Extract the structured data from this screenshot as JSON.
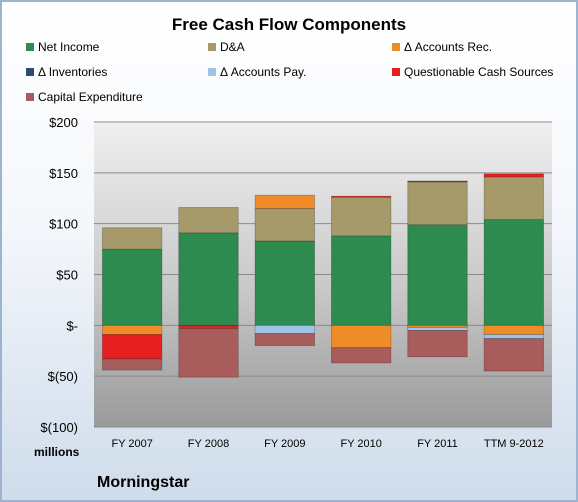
{
  "chart_data": {
    "type": "bar",
    "stacked": true,
    "title": "Free Cash Flow Components",
    "unit_label": "millions",
    "source": "Morningstar",
    "categories": [
      "FY 2007",
      "FY 2008",
      "FY 2009",
      "FY 2010",
      "FY 2011",
      "TTM 9-2012"
    ],
    "ylim": [
      -100,
      200
    ],
    "yticks": [
      200,
      150,
      100,
      50,
      0,
      -50,
      -100
    ],
    "ytick_labels": [
      "$200",
      "$150",
      "$100",
      "$50",
      "$-",
      "$(50)",
      "$(100)"
    ],
    "grid": true,
    "legend_position": "top",
    "series": [
      {
        "name": "Net Income",
        "color": "#2e8b4f",
        "values": [
          75,
          91,
          83,
          88,
          99,
          104
        ]
      },
      {
        "name": "D&A",
        "color": "#a69a6a",
        "values": [
          21,
          25,
          32,
          38,
          42,
          42
        ]
      },
      {
        "name": "Δ Accounts Rec.",
        "color": "#f08c28",
        "values": [
          -9,
          0,
          13,
          -22,
          -2,
          -9
        ]
      },
      {
        "name": "Δ Inventories",
        "color": "#2f4a70",
        "values": [
          0,
          0,
          0,
          0,
          0,
          0
        ]
      },
      {
        "name": "Δ Accounts Pay.",
        "color": "#9dc3e6",
        "values": [
          0,
          0,
          -8,
          0,
          -3,
          -4
        ]
      },
      {
        "name": "Questionable Cash Sources",
        "color": "#e62020",
        "values": [
          -24,
          -3,
          0,
          1,
          1,
          3
        ]
      },
      {
        "name": "Capital Expenditure",
        "color": "#a95c5c",
        "values": [
          -11,
          -48,
          -12,
          -15,
          -26,
          -32
        ]
      }
    ]
  }
}
